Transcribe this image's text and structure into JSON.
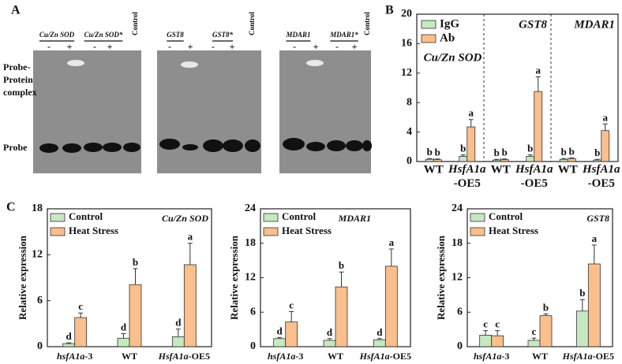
{
  "panel_labels": [
    "A",
    "B",
    "C"
  ],
  "gel": {
    "complex_label": [
      "Probe-",
      "Protein",
      "complex"
    ],
    "probe_label": "Probe",
    "groups": [
      {
        "labels": [
          "Cu/Zn SOD",
          "Cu/Zn SOD*",
          "Control"
        ],
        "signs": [
          "-",
          "+",
          "-",
          "+"
        ]
      },
      {
        "labels": [
          "GST8",
          "GST8*",
          "Control"
        ],
        "signs": [
          "-",
          "+",
          "-",
          "+"
        ]
      },
      {
        "labels": [
          "MDAR1",
          "MDAR1*",
          "Control"
        ],
        "signs": [
          "-",
          "+",
          "-",
          "+"
        ]
      }
    ]
  },
  "chart_data": [
    {
      "type": "bar",
      "section_labels": [
        "Cu/Zn SOD",
        "GST8",
        "MDAR1"
      ],
      "categories": [
        "WT",
        "HsfA1a-OE5",
        "WT",
        "HsfA1a-OE5",
        "WT",
        "HsfA1a-OE5"
      ],
      "series": [
        {
          "name": "IgG",
          "color": "#c6e8c2",
          "values": [
            0.3,
            0.7,
            0.2,
            0.7,
            0.3,
            0.2
          ],
          "errors": [
            0.1,
            0.2,
            0.1,
            0.2,
            0.1,
            0.1
          ],
          "significance": [
            "b",
            "b",
            "b",
            "b",
            "b",
            "b"
          ]
        },
        {
          "name": "Ab",
          "color": "#f9bf8c",
          "values": [
            0.25,
            4.7,
            0.25,
            9.5,
            0.4,
            4.2
          ],
          "errors": [
            0.1,
            1.0,
            0.1,
            2.0,
            0.1,
            0.9
          ],
          "significance": [
            "b",
            "a",
            "b",
            "a",
            "b",
            "a"
          ]
        }
      ],
      "ylim": [
        0,
        20
      ],
      "yticks": [
        0,
        4,
        8,
        12,
        16,
        20
      ]
    },
    {
      "type": "bar",
      "title": "Cu/Zn SOD",
      "y_label": "Relative expression",
      "categories": [
        "hsfA1a-3",
        "WT",
        "HsfA1a-OE5"
      ],
      "series": [
        {
          "name": "Control",
          "color": "#c6e8c2",
          "values": [
            0.4,
            1.1,
            1.3
          ],
          "errors": [
            0.1,
            0.6,
            1.0
          ],
          "significance": [
            "d",
            "d",
            "d"
          ]
        },
        {
          "name": "Heat Stress",
          "color": "#f9bf8c",
          "values": [
            3.8,
            8.1,
            10.7
          ],
          "errors": [
            0.6,
            2.1,
            2.8
          ],
          "significance": [
            "c",
            "b",
            "a"
          ]
        }
      ],
      "ylim": [
        0,
        18
      ],
      "yticks": [
        0,
        6,
        12,
        18
      ]
    },
    {
      "type": "bar",
      "title": "MDAR1",
      "y_label": "Relative expression",
      "categories": [
        "hsfA1a-3",
        "WT",
        "HsfA1a-OE5"
      ],
      "series": [
        {
          "name": "Control",
          "color": "#c6e8c2",
          "values": [
            1.4,
            1.1,
            1.2
          ],
          "errors": [
            0.2,
            0.3,
            0.2
          ],
          "significance": [
            "d",
            "d",
            "d"
          ]
        },
        {
          "name": "Heat Stress",
          "color": "#f9bf8c",
          "values": [
            4.3,
            10.4,
            14.0
          ],
          "errors": [
            1.8,
            2.6,
            3.0
          ],
          "significance": [
            "c",
            "b",
            "a"
          ]
        }
      ],
      "ylim": [
        0,
        24
      ],
      "yticks": [
        0,
        6,
        12,
        18,
        24
      ]
    },
    {
      "type": "bar",
      "title": "GST8",
      "y_label": "Relative expression",
      "categories": [
        "hsfA1a-3",
        "WT",
        "HsfA1a-OE5"
      ],
      "series": [
        {
          "name": "Control",
          "color": "#c6e8c2",
          "values": [
            2.0,
            1.1,
            6.2
          ],
          "errors": [
            0.8,
            0.4,
            2.0
          ],
          "significance": [
            "c",
            "c",
            "b"
          ]
        },
        {
          "name": "Heat Stress",
          "color": "#f9bf8c",
          "values": [
            1.9,
            5.4,
            14.4
          ],
          "errors": [
            0.9,
            0.3,
            3.3
          ],
          "significance": [
            "c",
            "b",
            "a"
          ]
        }
      ],
      "ylim": [
        0,
        24
      ],
      "yticks": [
        0,
        6,
        12,
        18,
        24
      ]
    }
  ]
}
